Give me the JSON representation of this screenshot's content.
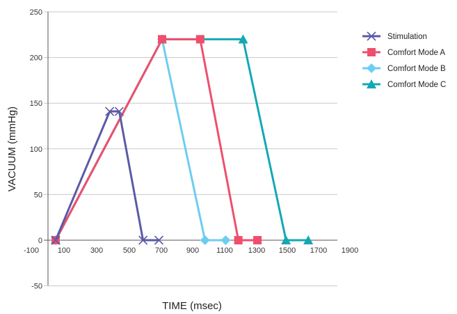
{
  "chart_data": {
    "type": "line",
    "xlabel": "TIME (msec)",
    "ylabel": "VACUUM (mmHg)",
    "xlim": [
      -100,
      1900
    ],
    "ylim": [
      -50,
      250
    ],
    "xticks": [
      -100,
      100,
      300,
      500,
      700,
      900,
      1100,
      1300,
      1500,
      1700,
      1900
    ],
    "yticks": [
      -50,
      0,
      50,
      100,
      150,
      200,
      250
    ],
    "grid": "horizontal",
    "legend_position": "right",
    "series": [
      {
        "name": "Stimulation",
        "color": "#5b5aa6",
        "marker": "x",
        "points": [
          [
            30,
            0
          ],
          [
            370,
            141
          ],
          [
            430,
            141
          ],
          [
            580,
            0
          ],
          [
            680,
            0
          ]
        ]
      },
      {
        "name": "Comfort Mode A",
        "color": "#ee4f6c",
        "marker": "square",
        "points": [
          [
            30,
            0
          ],
          [
            700,
            220
          ],
          [
            940,
            220
          ],
          [
            1180,
            0
          ],
          [
            1300,
            0
          ]
        ]
      },
      {
        "name": "Comfort Mode B",
        "color": "#6ccdf2",
        "marker": "diamond",
        "points": [
          [
            30,
            0
          ],
          [
            700,
            220
          ],
          [
            970,
            0
          ],
          [
            1100,
            0
          ]
        ]
      },
      {
        "name": "Comfort Mode C",
        "color": "#14a8b4",
        "marker": "triangle",
        "points": [
          [
            30,
            0
          ],
          [
            700,
            220
          ],
          [
            1210,
            220
          ],
          [
            1480,
            0
          ],
          [
            1620,
            0
          ]
        ]
      }
    ]
  }
}
